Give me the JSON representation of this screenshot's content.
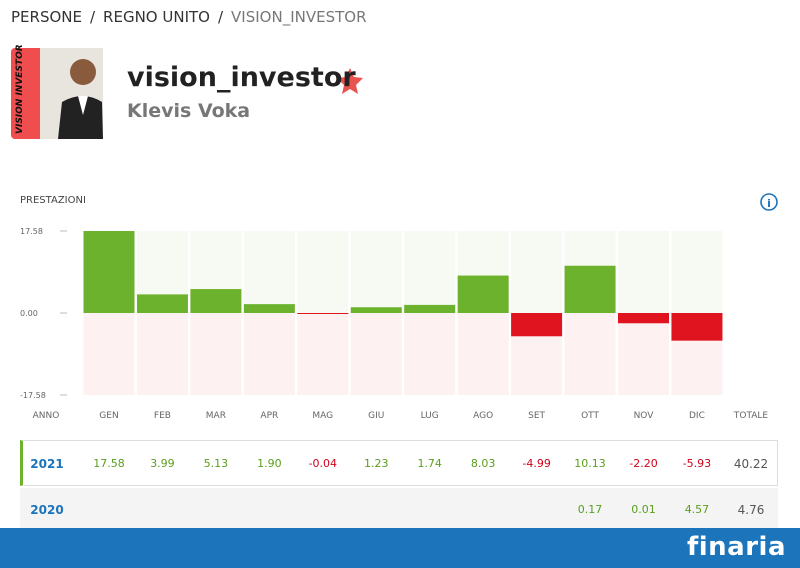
{
  "breadcrumb": [
    "PERSONE",
    "REGNO UNITO",
    "VISION_INVESTOR"
  ],
  "profile": {
    "username": "vision_investor",
    "name": "Klevis Voka",
    "avatar_text": "VISION INVESTOR"
  },
  "performance": {
    "title": "PRESTAZIONI",
    "chart": {
      "type": "bar",
      "ylim": [
        -17.58,
        17.58
      ],
      "yticks": [
        17.58,
        {
          "value": 0,
          "label": "0.00"
        },
        -17.58
      ]
    },
    "table": {
      "header": [
        "ANNO",
        "GEN",
        "FEB",
        "MAR",
        "APR",
        "MAG",
        "GIU",
        "LUG",
        "AGO",
        "SET",
        "OTT",
        "NOV",
        "DIC",
        "TOTALE"
      ],
      "rows": [
        {
          "year": "2021",
          "values": [
            17.58,
            3.99,
            5.13,
            1.9,
            -0.04,
            1.23,
            1.74,
            8.03,
            -4.99,
            10.13,
            -2.2,
            -5.93
          ],
          "value_labels": [
            "17.58",
            "3.99",
            "5.13",
            "1.90",
            "-0.04",
            "1.23",
            "1.74",
            "8.03",
            "-4.99",
            "10.13",
            "-2.20",
            "-5.93"
          ],
          "total": 40.22
        },
        {
          "year": "2020",
          "values": [
            null,
            null,
            null,
            null,
            null,
            null,
            null,
            null,
            null,
            0.17,
            0.01,
            4.57
          ],
          "value_labels": [
            null,
            null,
            null,
            null,
            null,
            null,
            null,
            null,
            null,
            "0.17",
            "0.01",
            "4.57"
          ],
          "total": 4.76
        }
      ]
    }
  },
  "footer": {
    "brand": "finaria"
  }
}
